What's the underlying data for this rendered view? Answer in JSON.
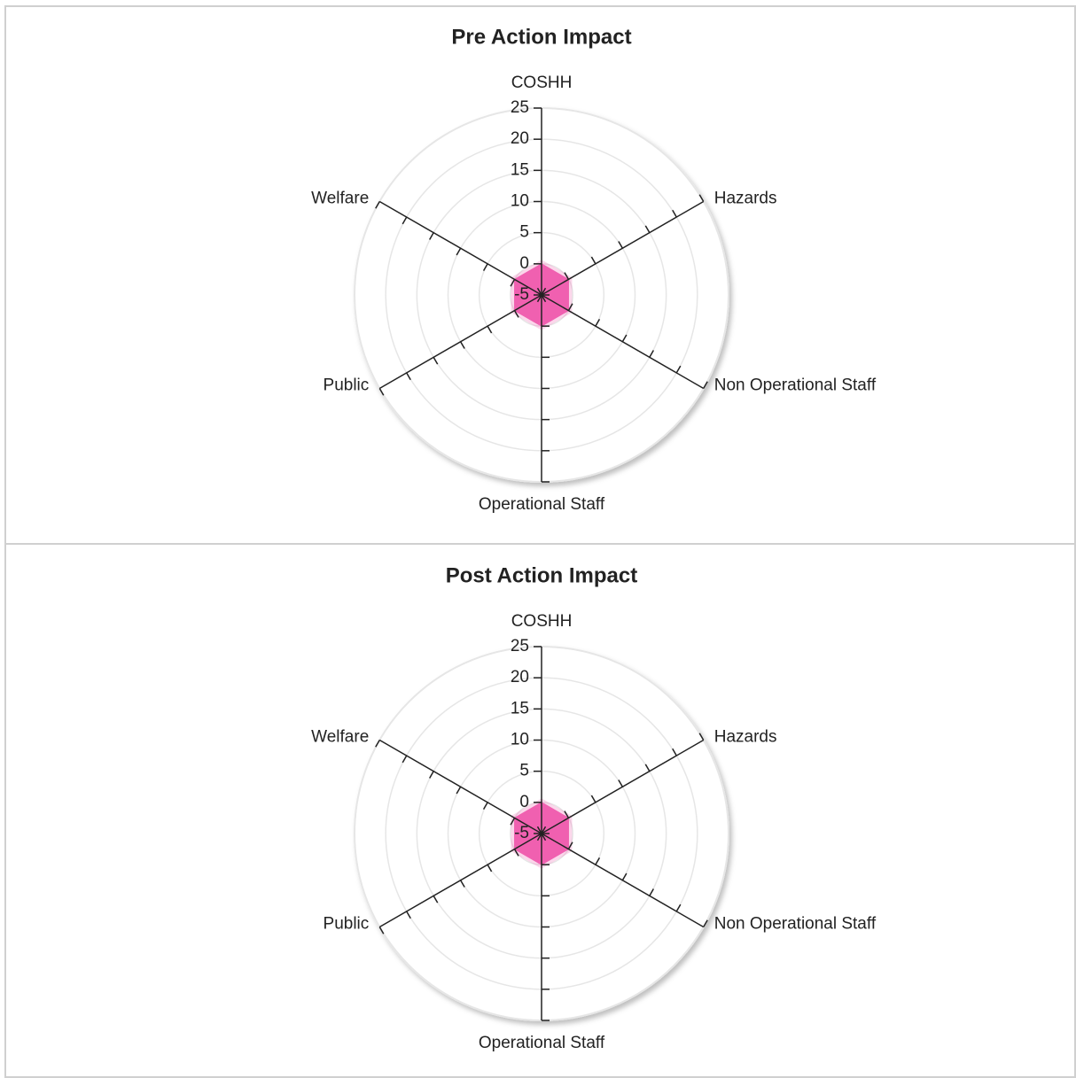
{
  "chart_data": [
    {
      "type": "radar",
      "title": "Pre Action Impact",
      "categories": [
        "COSHH",
        "Hazards",
        "Non Operational Staff",
        "Operational Staff",
        "Public",
        "Welfare"
      ],
      "values": [
        0,
        0,
        0,
        0,
        0,
        0
      ],
      "color": "#f060b0",
      "rlim": [
        -5,
        25
      ],
      "rticks": [
        -5,
        0,
        5,
        10,
        15,
        20,
        25
      ],
      "grid": true
    },
    {
      "type": "radar",
      "title": "Post Action Impact",
      "categories": [
        "COSHH",
        "Hazards",
        "Non Operational Staff",
        "Operational Staff",
        "Public",
        "Welfare"
      ],
      "values": [
        0,
        0,
        0,
        0,
        0,
        0
      ],
      "color": "#f060b0",
      "rlim": [
        -5,
        25
      ],
      "rticks": [
        -5,
        0,
        5,
        10,
        15,
        20,
        25
      ],
      "grid": true
    }
  ]
}
